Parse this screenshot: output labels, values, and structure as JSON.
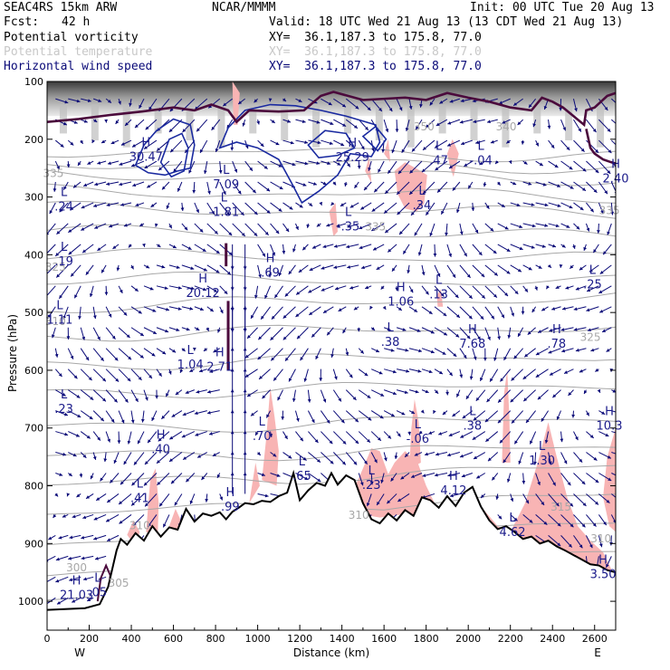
{
  "header": {
    "model": "SEAC4RS 15km ARW",
    "org": "NCAR/MMMM",
    "init": "Init: 00 UTC Tue 20 Aug 13",
    "fcst_label": "Fcst:",
    "fcst_value": "42 h",
    "valid": "Valid: 18 UTC Wed 21 Aug 13 (13 CDT Wed 21 Aug 13)",
    "fields": [
      {
        "name": "Potential vorticity",
        "xy": "XY=  36.1,187.3 to 175.8, 77.0",
        "color": "#000000"
      },
      {
        "name": "Potential temperature",
        "xy": "XY=  36.1,187.3 to 175.8, 77.0",
        "color": "#c8c8c8"
      },
      {
        "name": "Horizontal wind speed",
        "xy": "XY=  36.1,187.3 to 175.8, 77.0",
        "color": "#0a0a78"
      }
    ]
  },
  "chart_data": {
    "type": "cross-section",
    "xlabel": "Distance (km)",
    "ylabel": "Pressure (hPa)",
    "xlim": [
      0,
      2700
    ],
    "ylim": [
      1050,
      100
    ],
    "x_ticks": [
      "0",
      "200",
      "400",
      "600",
      "800",
      "1000",
      "1200",
      "1400",
      "1600",
      "1800",
      "2000",
      "2200",
      "2400",
      "2600"
    ],
    "x_tick_values": [
      0,
      200,
      400,
      600,
      800,
      1000,
      1200,
      1400,
      1600,
      1800,
      2000,
      2200,
      2400,
      2600
    ],
    "y_ticks": [
      "100",
      "200",
      "300",
      "400",
      "500",
      "600",
      "700",
      "800",
      "900",
      "1000"
    ],
    "y_tick_values": [
      100,
      200,
      300,
      400,
      500,
      600,
      700,
      800,
      900,
      1000
    ],
    "endpoint_left": "W",
    "endpoint_right": "E",
    "colors": {
      "wind": "#0a0a78",
      "theta": "#a8a8a8",
      "pv_contour": "#4b0a3c",
      "pink": "#f8b4b4",
      "terrain": "#000000"
    },
    "terrain": {
      "x": [
        0,
        180,
        250,
        290,
        330,
        350,
        380,
        420,
        460,
        500,
        540,
        580,
        620,
        660,
        700,
        740,
        780,
        820,
        850,
        880,
        910,
        940,
        980,
        1020,
        1060,
        1100,
        1140,
        1170,
        1200,
        1240,
        1280,
        1320,
        1350,
        1380,
        1420,
        1460,
        1500,
        1540,
        1580,
        1620,
        1660,
        1700,
        1740,
        1780,
        1820,
        1860,
        1900,
        1940,
        1980,
        2020,
        2060,
        2100,
        2140,
        2180,
        2220,
        2260,
        2300,
        2340,
        2380,
        2420,
        2460,
        2500,
        2540,
        2580,
        2620,
        2660,
        2700
      ],
      "p": [
        1015,
        1012,
        1005,
        975,
        912,
        892,
        902,
        882,
        895,
        870,
        888,
        872,
        876,
        840,
        862,
        848,
        852,
        846,
        858,
        845,
        838,
        830,
        832,
        826,
        828,
        818,
        812,
        778,
        825,
        808,
        795,
        800,
        778,
        798,
        782,
        790,
        830,
        858,
        865,
        848,
        860,
        842,
        852,
        820,
        825,
        838,
        818,
        835,
        812,
        802,
        836,
        860,
        875,
        870,
        880,
        892,
        888,
        900,
        895,
        905,
        912,
        920,
        928,
        936,
        938,
        946,
        950
      ]
    },
    "theta_labels": [
      {
        "text": "335",
        "x": 30,
        "p": 265
      },
      {
        "text": "350",
        "x": 1790,
        "p": 185
      },
      {
        "text": "340",
        "x": 2180,
        "p": 185
      },
      {
        "text": "335",
        "x": 2670,
        "p": 330
      },
      {
        "text": "335",
        "x": 1560,
        "p": 358
      },
      {
        "text": "325",
        "x": 40,
        "p": 428
      },
      {
        "text": "325",
        "x": 2580,
        "p": 549
      },
      {
        "text": "310",
        "x": 40,
        "p": 522
      },
      {
        "text": "310",
        "x": 2630,
        "p": 898
      },
      {
        "text": "310",
        "x": 440,
        "p": 875
      },
      {
        "text": "300",
        "x": 140,
        "p": 948
      },
      {
        "text": "305",
        "x": 340,
        "p": 975
      },
      {
        "text": "310",
        "x": 1480,
        "p": 857
      },
      {
        "text": "315",
        "x": 2440,
        "p": 843
      }
    ],
    "extrema": [
      {
        "type": "H",
        "value": "30.47",
        "x": 470,
        "p": 234
      },
      {
        "type": "L",
        "value": "7.09",
        "x": 850,
        "p": 282
      },
      {
        "type": "L",
        "value": "-1.81",
        "x": 840,
        "p": 330
      },
      {
        "type": "H",
        "value": "25.29",
        "x": 1450,
        "p": 235
      },
      {
        "type": "L",
        "value": "-.35",
        "x": 1430,
        "p": 355
      },
      {
        "type": "L",
        "value": ".24",
        "x": 80,
        "p": 320
      },
      {
        "type": "L",
        "value": ".34",
        "x": 1780,
        "p": 318
      },
      {
        "type": "L",
        "value": ".47",
        "x": 1860,
        "p": 240
      },
      {
        "type": "L",
        "value": "-.04",
        "x": 2060,
        "p": 240
      },
      {
        "type": "H",
        "value": "2.40",
        "x": 2700,
        "p": 272
      },
      {
        "type": "L",
        "value": ".19",
        "x": 80,
        "p": 415
      },
      {
        "type": "H",
        "value": ".69",
        "x": 1060,
        "p": 435
      },
      {
        "type": "H",
        "value": "20.12",
        "x": 740,
        "p": 470
      },
      {
        "type": "H",
        "value": "1.06",
        "x": 1680,
        "p": 485
      },
      {
        "type": "L",
        "value": ".13",
        "x": 1860,
        "p": 472
      },
      {
        "type": "L",
        "value": ".25",
        "x": 2590,
        "p": 455
      },
      {
        "type": "L",
        "value": "1.11",
        "x": 60,
        "p": 516
      },
      {
        "type": "L",
        "value": ".38",
        "x": 1630,
        "p": 555
      },
      {
        "type": "H",
        "value": "7.68",
        "x": 2020,
        "p": 558
      },
      {
        "type": "H",
        "value": ".78",
        "x": 2420,
        "p": 558
      },
      {
        "type": "L",
        "value": "1.04",
        "x": 680,
        "p": 594
      },
      {
        "type": "H",
        "value": "2.71",
        "x": 820,
        "p": 598
      },
      {
        "type": "L",
        "value": ".23",
        "x": 80,
        "p": 671
      },
      {
        "type": "L",
        "value": ".38",
        "x": 2020,
        "p": 700
      },
      {
        "type": "H",
        "value": "10.3",
        "x": 2670,
        "p": 700
      },
      {
        "type": "L",
        "value": "-.06",
        "x": 1760,
        "p": 722
      },
      {
        "type": "L",
        "value": ".70",
        "x": 1020,
        "p": 718
      },
      {
        "type": "H",
        "value": ".40",
        "x": 540,
        "p": 740
      },
      {
        "type": "L",
        "value": "1.30",
        "x": 2350,
        "p": 760
      },
      {
        "type": "L",
        "value": ".65",
        "x": 1210,
        "p": 787
      },
      {
        "type": "L",
        "value": ".23",
        "x": 1540,
        "p": 802
      },
      {
        "type": "H",
        "value": "4.12",
        "x": 1930,
        "p": 812
      },
      {
        "type": "L",
        "value": ".41",
        "x": 440,
        "p": 825
      },
      {
        "type": "H",
        "value": ".99",
        "x": 870,
        "p": 840
      },
      {
        "type": "L",
        "value": "4.62",
        "x": 2210,
        "p": 884
      },
      {
        "type": "H",
        "value": "3.50",
        "x": 2640,
        "p": 957
      },
      {
        "type": "H",
        "value": "21.03",
        "x": 140,
        "p": 993
      },
      {
        "type": "L",
        "value": ".05",
        "x": 240,
        "p": 988
      }
    ]
  }
}
